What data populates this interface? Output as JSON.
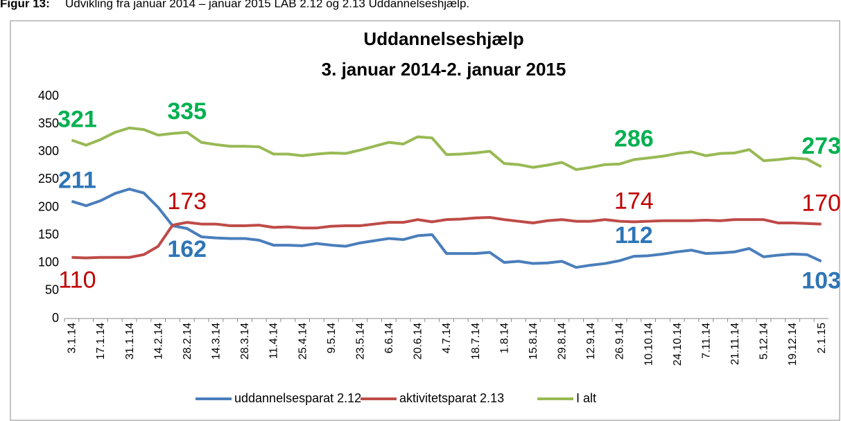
{
  "chart_data": {
    "type": "line",
    "caption_label": "Figur 13:",
    "caption": "Udvikling fra januar 2014 – januar 2015 LAB 2.12 og 2.13 Uddannelseshjælp.",
    "title": [
      "Uddannelseshjælp",
      "3. januar 2014-2. januar 2015"
    ],
    "categories": [
      "3.1.14",
      null,
      "17.1.14",
      null,
      "31.1.14",
      null,
      "14.2.14",
      null,
      "28.2.14",
      null,
      "14.3.14",
      null,
      "28.3.14",
      null,
      "11.4.14",
      null,
      "25.4.14",
      null,
      "9.5.14",
      null,
      "23.5.14",
      null,
      "6.6.14",
      null,
      "20.6.14",
      null,
      "4.7.14",
      null,
      "18.7.14",
      null,
      "1.8.14",
      null,
      "15.8.14",
      null,
      "29.8.14",
      null,
      "12.9.14",
      null,
      "26.9.14",
      null,
      "10.10.14",
      null,
      "24.10.14",
      null,
      "7.11.14",
      null,
      "21.11.14",
      null,
      "5.12.14",
      null,
      "19.12.14",
      null,
      "2.1.15"
    ],
    "ylim": [
      0,
      400
    ],
    "yticks": [
      0,
      50,
      100,
      150,
      200,
      250,
      300,
      350,
      400
    ],
    "grid": false,
    "legend": "bottom",
    "series": [
      {
        "name": "uddannelsesparat 2.12",
        "color": "#4a7ebb",
        "label_color": "#2e75b6",
        "label_bold": true,
        "values": [
          211,
          203,
          212,
          225,
          233,
          226,
          200,
          167,
          162,
          147,
          145,
          144,
          144,
          141,
          132,
          132,
          131,
          135,
          132,
          130,
          136,
          140,
          144,
          142,
          149,
          151,
          117,
          117,
          117,
          119,
          101,
          103,
          99,
          100,
          103,
          92,
          96,
          99,
          104,
          112,
          113,
          116,
          120,
          123,
          117,
          118,
          120,
          126,
          111,
          114,
          116,
          115,
          103
        ],
        "value_labels": [
          "211",
          null,
          null,
          null,
          null,
          null,
          null,
          null,
          "162",
          null,
          null,
          null,
          null,
          null,
          null,
          null,
          null,
          null,
          null,
          null,
          null,
          null,
          null,
          null,
          null,
          null,
          null,
          null,
          null,
          null,
          null,
          null,
          null,
          null,
          null,
          null,
          null,
          null,
          null,
          "112",
          null,
          null,
          null,
          null,
          null,
          null,
          null,
          null,
          null,
          null,
          null,
          null,
          "103"
        ]
      },
      {
        "name": "aktivitetsparat 2.13",
        "color": "#be4b48",
        "label_color": "#c00000",
        "label_bold": false,
        "values": [
          110,
          109,
          110,
          110,
          110,
          115,
          130,
          168,
          173,
          170,
          170,
          167,
          167,
          168,
          164,
          165,
          163,
          163,
          166,
          167,
          167,
          170,
          173,
          173,
          178,
          174,
          178,
          179,
          181,
          182,
          178,
          175,
          172,
          176,
          178,
          175,
          175,
          178,
          175,
          174,
          175,
          176,
          176,
          176,
          177,
          176,
          178,
          178,
          178,
          172,
          172,
          171,
          170
        ],
        "value_labels": [
          "110",
          null,
          null,
          null,
          null,
          null,
          null,
          null,
          "173",
          null,
          null,
          null,
          null,
          null,
          null,
          null,
          null,
          null,
          null,
          null,
          null,
          null,
          null,
          null,
          null,
          null,
          null,
          null,
          null,
          null,
          null,
          null,
          null,
          null,
          null,
          null,
          null,
          null,
          null,
          "174",
          null,
          null,
          null,
          null,
          null,
          null,
          null,
          null,
          null,
          null,
          null,
          null,
          "170"
        ]
      },
      {
        "name": "I alt",
        "color": "#98b954",
        "label_color": "#00b050",
        "label_bold": true,
        "values": [
          321,
          312,
          322,
          335,
          343,
          340,
          330,
          333,
          335,
          317,
          313,
          310,
          310,
          309,
          296,
          296,
          293,
          296,
          298,
          297,
          303,
          310,
          317,
          314,
          327,
          325,
          295,
          296,
          298,
          301,
          279,
          277,
          272,
          276,
          281,
          268,
          272,
          277,
          278,
          286,
          289,
          292,
          297,
          300,
          293,
          297,
          298,
          304,
          284,
          286,
          289,
          287,
          273
        ],
        "value_labels": [
          "321",
          null,
          null,
          null,
          null,
          null,
          null,
          null,
          "335",
          null,
          null,
          null,
          null,
          null,
          null,
          null,
          null,
          null,
          null,
          null,
          null,
          null,
          null,
          null,
          null,
          null,
          null,
          null,
          null,
          null,
          null,
          null,
          null,
          null,
          null,
          null,
          null,
          null,
          null,
          "286",
          null,
          null,
          null,
          null,
          null,
          null,
          null,
          null,
          null,
          null,
          null,
          null,
          "273"
        ]
      }
    ]
  }
}
